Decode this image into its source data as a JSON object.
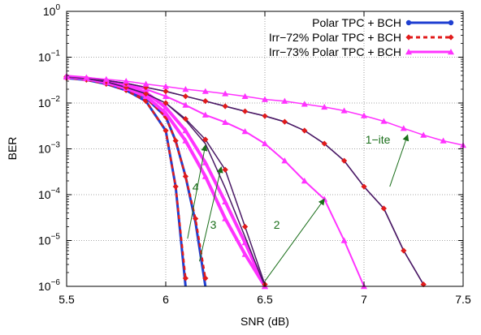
{
  "chart_data": {
    "type": "line",
    "xlabel": "SNR (dB)",
    "ylabel": "BER",
    "xlim": [
      5.5,
      7.5
    ],
    "ylim": [
      1e-06,
      1
    ],
    "yscale": "log",
    "grid": "dotted",
    "legend_position": "top-right",
    "x_ticks": [
      "5.5",
      "6",
      "6.5",
      "7",
      "7.5"
    ],
    "y_ticks": [
      {
        "base": "10",
        "exp": "0",
        "value": 1
      },
      {
        "base": "10",
        "exp": "−1",
        "value": 0.1
      },
      {
        "base": "10",
        "exp": "−2",
        "value": 0.01
      },
      {
        "base": "10",
        "exp": "−3",
        "value": 0.001
      },
      {
        "base": "10",
        "exp": "−4",
        "value": 0.0001
      },
      {
        "base": "10",
        "exp": "−5",
        "value": 1e-05
      },
      {
        "base": "10",
        "exp": "−6",
        "value": 1e-06
      }
    ],
    "legend": [
      {
        "name": "Polar TPC + BCH",
        "color": "#1f3fd1",
        "dash": "",
        "marker": "circle",
        "width": 3
      },
      {
        "name": "Irr−72% Polar TPC + BCH",
        "color": "#e11b1b",
        "dash": "5,4",
        "marker": "diamond",
        "width": 3
      },
      {
        "name": "Irr−73% Polar TPC + BCH",
        "color": "#ff33ff",
        "dash": "",
        "marker": "triangle",
        "width": 3
      }
    ],
    "series": [
      {
        "group": "Polar TPC + BCH",
        "iteration": "4",
        "color": "#1f3fd1",
        "width": 3,
        "dash": "",
        "marker": "none",
        "x": [
          5.5,
          5.6,
          5.7,
          5.8,
          5.9,
          6.0,
          6.05,
          6.1
        ],
        "y": [
          0.035,
          0.032,
          0.026,
          0.019,
          0.011,
          0.0025,
          0.00015,
          1e-06
        ]
      },
      {
        "group": "Irr−72% Polar TPC + BCH",
        "iteration": "4",
        "color": "#e11b1b",
        "width": 2.5,
        "dash": "5,4",
        "marker": "diamond",
        "x": [
          5.5,
          5.6,
          5.7,
          5.8,
          5.9,
          6.0,
          6.05,
          6.1
        ],
        "y": [
          0.035,
          0.032,
          0.026,
          0.019,
          0.011,
          0.0025,
          0.00015,
          1.5e-06
        ]
      },
      {
        "group": "Polar TPC + BCH",
        "iteration": "3",
        "color": "#1f3fd1",
        "width": 3,
        "dash": "",
        "marker": "none",
        "x": [
          5.5,
          5.6,
          5.7,
          5.8,
          5.9,
          6.0,
          6.05,
          6.1,
          6.15,
          6.2
        ],
        "y": [
          0.036,
          0.033,
          0.027,
          0.02,
          0.013,
          0.005,
          0.0015,
          0.00025,
          2.5e-05,
          1e-06
        ]
      },
      {
        "group": "Irr−72% Polar TPC + BCH",
        "iteration": "3",
        "color": "#e11b1b",
        "width": 2.5,
        "dash": "5,4",
        "marker": "diamond",
        "x": [
          5.5,
          5.6,
          5.7,
          5.8,
          5.9,
          6.0,
          6.05,
          6.1,
          6.15,
          6.2
        ],
        "y": [
          0.036,
          0.033,
          0.027,
          0.02,
          0.013,
          0.005,
          0.0015,
          0.00025,
          3e-05,
          1.5e-06
        ]
      },
      {
        "group": "Irr−73% Polar TPC + BCH",
        "iteration": "4",
        "color": "#ff33ff",
        "width": 4,
        "dash": "",
        "marker": "triangle",
        "x": [
          5.5,
          5.6,
          5.7,
          5.8,
          5.9,
          6.0,
          6.1,
          6.2,
          6.3,
          6.4,
          6.5
        ],
        "y": [
          0.037,
          0.034,
          0.028,
          0.021,
          0.014,
          0.006,
          0.0015,
          0.00025,
          3e-05,
          5e-06,
          1e-06
        ]
      },
      {
        "group": "Irr−73% Polar TPC + BCH",
        "iteration": "3",
        "color": "#ff33ff",
        "width": 4,
        "dash": "",
        "marker": "triangle",
        "x": [
          5.5,
          5.6,
          5.7,
          5.8,
          5.9,
          6.0,
          6.1,
          6.2,
          6.3,
          6.4,
          6.5
        ],
        "y": [
          0.038,
          0.035,
          0.03,
          0.024,
          0.017,
          0.008,
          0.0025,
          0.0005,
          7e-05,
          9e-06,
          1e-06
        ]
      },
      {
        "group": "Polar TPC + BCH",
        "iteration": "2",
        "color": "#1f3fd1",
        "width": 1.5,
        "dash": "",
        "marker": "none",
        "x": [
          5.5,
          5.6,
          5.7,
          5.8,
          5.9,
          6.0,
          6.1,
          6.2,
          6.3,
          6.4,
          6.5
        ],
        "y": [
          0.037,
          0.034,
          0.029,
          0.022,
          0.016,
          0.01,
          0.0042,
          0.0013,
          0.00014,
          1.2e-05,
          1e-06
        ]
      },
      {
        "group": "Irr−72% Polar TPC + BCH",
        "iteration": "2",
        "color": "#e11b1b",
        "width": 1.5,
        "dash": "",
        "marker": "diamond",
        "x": [
          5.5,
          5.6,
          5.7,
          5.8,
          5.9,
          6.0,
          6.1,
          6.2,
          6.3,
          6.4,
          6.5
        ],
        "y": [
          0.037,
          0.034,
          0.029,
          0.022,
          0.016,
          0.01,
          0.0045,
          0.0016,
          0.00035,
          2e-05,
          1.1e-06
        ]
      },
      {
        "group": "Irr−73% Polar TPC + BCH",
        "iteration": "2",
        "color": "#ff33ff",
        "width": 2,
        "dash": "",
        "marker": "triangle",
        "x": [
          5.5,
          5.6,
          5.7,
          5.8,
          5.9,
          6.0,
          6.1,
          6.2,
          6.3,
          6.4,
          6.5,
          6.6,
          6.7,
          6.8,
          6.9,
          7.0
        ],
        "y": [
          0.038,
          0.035,
          0.031,
          0.026,
          0.02,
          0.014,
          0.009,
          0.0055,
          0.0038,
          0.0024,
          0.0013,
          0.00055,
          0.0002,
          8e-05,
          1e-05,
          1e-06
        ]
      },
      {
        "group": "Polar TPC + BCH",
        "iteration": "1-ite",
        "color": "#1f3fd1",
        "width": 1.5,
        "dash": "",
        "marker": "none",
        "x": [
          5.5,
          5.6,
          5.7,
          5.8,
          5.9,
          6.0,
          6.1,
          6.2,
          6.3,
          6.4,
          6.5,
          6.6,
          6.7,
          6.8,
          6.9,
          7.0,
          7.1,
          7.2,
          7.3
        ],
        "y": [
          0.038,
          0.035,
          0.031,
          0.027,
          0.022,
          0.018,
          0.014,
          0.011,
          0.0085,
          0.0066,
          0.0052,
          0.0039,
          0.0025,
          0.0013,
          0.00055,
          0.00015,
          5e-05,
          6e-06,
          1.1e-06
        ]
      },
      {
        "group": "Irr−72% Polar TPC + BCH",
        "iteration": "1-ite",
        "color": "#e11b1b",
        "width": 1.5,
        "dash": "",
        "marker": "diamond",
        "x": [
          5.5,
          5.6,
          5.7,
          5.8,
          5.9,
          6.0,
          6.1,
          6.2,
          6.3,
          6.4,
          6.5,
          6.6,
          6.7,
          6.8,
          6.9,
          7.0,
          7.1,
          7.2,
          7.3
        ],
        "y": [
          0.038,
          0.035,
          0.031,
          0.027,
          0.022,
          0.018,
          0.014,
          0.011,
          0.0085,
          0.0066,
          0.0052,
          0.0039,
          0.0025,
          0.0013,
          0.00055,
          0.00015,
          5e-05,
          6e-06,
          1.1e-06
        ]
      },
      {
        "group": "Irr−73% Polar TPC + BCH",
        "iteration": "1-ite",
        "color": "#ff33ff",
        "width": 1.5,
        "dash": "",
        "marker": "triangle",
        "x": [
          5.5,
          5.6,
          5.7,
          5.8,
          5.9,
          6.0,
          6.1,
          6.2,
          6.3,
          6.4,
          6.5,
          6.6,
          6.7,
          6.8,
          6.9,
          7.0,
          7.1,
          7.2,
          7.3,
          7.4,
          7.5
        ],
        "y": [
          0.039,
          0.036,
          0.033,
          0.03,
          0.026,
          0.023,
          0.02,
          0.018,
          0.016,
          0.014,
          0.012,
          0.011,
          0.0095,
          0.0082,
          0.0068,
          0.0053,
          0.004,
          0.0028,
          0.002,
          0.0015,
          0.0012
        ]
      }
    ],
    "annotations": [
      {
        "text": "1−ite",
        "color": "#1a6e1a",
        "label_at": [
          7.07,
          0.0013
        ],
        "from": [
          7.13,
          0.00015
        ],
        "to": [
          7.22,
          0.002
        ]
      },
      {
        "text": "2",
        "color": "#1a6e1a",
        "label_at": [
          6.56,
          1.8e-05
        ],
        "from": [
          6.5,
          1.3e-06
        ],
        "to": [
          6.8,
          8e-05
        ]
      },
      {
        "text": "3",
        "color": "#1a6e1a",
        "label_at": [
          6.24,
          1.8e-05
        ],
        "from": [
          6.17,
          3.5e-06
        ],
        "to": [
          6.28,
          0.0004
        ]
      },
      {
        "text": "4",
        "color": "#1a6e1a",
        "label_at": [
          6.15,
          0.00012
        ],
        "from": [
          6.11,
          1.1e-05
        ],
        "to": [
          6.2,
          0.0012
        ]
      }
    ]
  }
}
